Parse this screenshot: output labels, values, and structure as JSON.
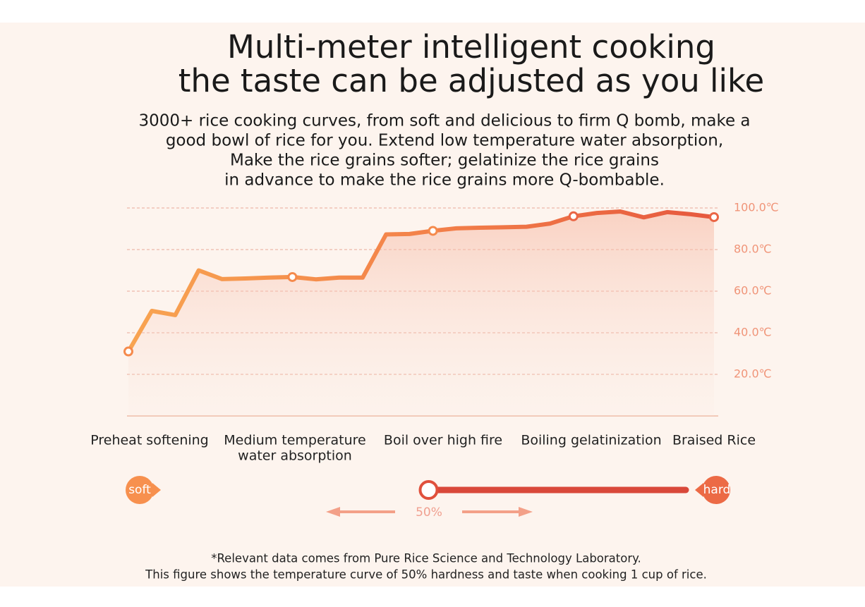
{
  "chart_data": {
    "type": "line",
    "title_lines": [
      "Multi-meter intelligent cooking",
      "the taste can be adjusted as you like"
    ],
    "subtitle_lines": [
      "3000+ rice cooking curves, from soft and delicious to firm Q bomb, make a",
      "good bowl of rice for you. Extend low temperature water absorption,",
      "Make the rice grains softer; gelatinize the rice grains",
      "in advance to make the rice grains more Q-bombable."
    ],
    "values": [
      31,
      50.5,
      48.5,
      70,
      65.8,
      66.1,
      66.5,
      66.8,
      65.7,
      66.5,
      66.5,
      87.3,
      87.5,
      89,
      90.2,
      90.5,
      90.7,
      91,
      92.5,
      96,
      97.6,
      98.3,
      95.5,
      98,
      97,
      95.6
    ],
    "ylim": [
      0,
      100
    ],
    "yticks": [
      {
        "value": 100,
        "label": "100.0℃"
      },
      {
        "value": 80,
        "label": "80.0℃"
      },
      {
        "value": 60,
        "label": "60.0℃"
      },
      {
        "value": 40,
        "label": "40.0℃"
      },
      {
        "value": 20,
        "label": "20.0℃"
      }
    ],
    "grid": true,
    "stages": [
      [
        "Preheat softening"
      ],
      [
        "Medium temperature",
        "water absorption"
      ],
      [
        "Boil over high fire"
      ],
      [
        "Boiling gelatinization"
      ],
      [
        "Braised Rice"
      ]
    ],
    "slider": {
      "min_label": "soft",
      "max_label": "hard",
      "value": 50,
      "label": "50%"
    },
    "footnote_lines": [
      "*Relevant data comes from Pure Rice Science and Technology Laboratory.",
      "This figure shows the temperature curve of 50% hardness and taste when cooking 1 cup of rice."
    ]
  }
}
